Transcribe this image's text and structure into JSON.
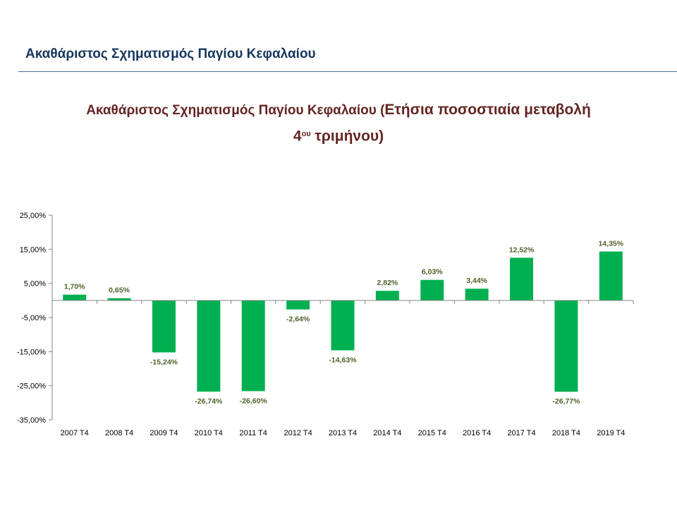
{
  "slide": {
    "header": "Ακαθάριστος Σχηματισμός Παγίου Κεφαλαίου"
  },
  "chart_title": {
    "part1": "Ακαθάριστος Σχηματισμός Παγίου Κεφαλαίου (",
    "part2": "Ετήσια ποσοστιαία μεταβολή",
    "line2_num": "4",
    "line2_sup": "ου",
    "line2_rest": " τριμήνου)"
  },
  "chart_data": {
    "type": "bar",
    "title": "Ακαθάριστος Σχηματισμός Παγίου Κεφαλαίου (Ετήσια ποσοστιαία μεταβολή 4ου τριμήνου)",
    "categories": [
      "2007 T4",
      "2008 T4",
      "2009 T4",
      "2010 T4",
      "2011 T4",
      "2012 T4",
      "2013 T4",
      "2014 T4",
      "2015 T4",
      "2016 T4",
      "2017 T4",
      "2018 T4",
      "2019 T4"
    ],
    "values": [
      1.7,
      0.65,
      -15.24,
      -26.74,
      -26.6,
      -2.64,
      -14.63,
      2.82,
      6.03,
      3.44,
      12.52,
      -26.77,
      14.35
    ],
    "data_labels": [
      "1,70%",
      "0,65%",
      "-15,24%",
      "-26,74%",
      "-26,60%",
      "-2,64%",
      "-14,63%",
      "2,82%",
      "6,03%",
      "3,44%",
      "12,52%",
      "-26,77%",
      "14,35%"
    ],
    "yticks": [
      25,
      15,
      5,
      -5,
      -15,
      -25,
      -35
    ],
    "ytick_labels": [
      "25,00%",
      "15,00%",
      "5,00%",
      "-5,00%",
      "-15,00%",
      "-25,00%",
      "-35,00%"
    ],
    "ylim": [
      -35,
      25
    ],
    "xlabel": "",
    "ylabel": "",
    "grid": false,
    "legend": "none",
    "bar_color": "#00b050",
    "label_color": "#4f6228"
  }
}
